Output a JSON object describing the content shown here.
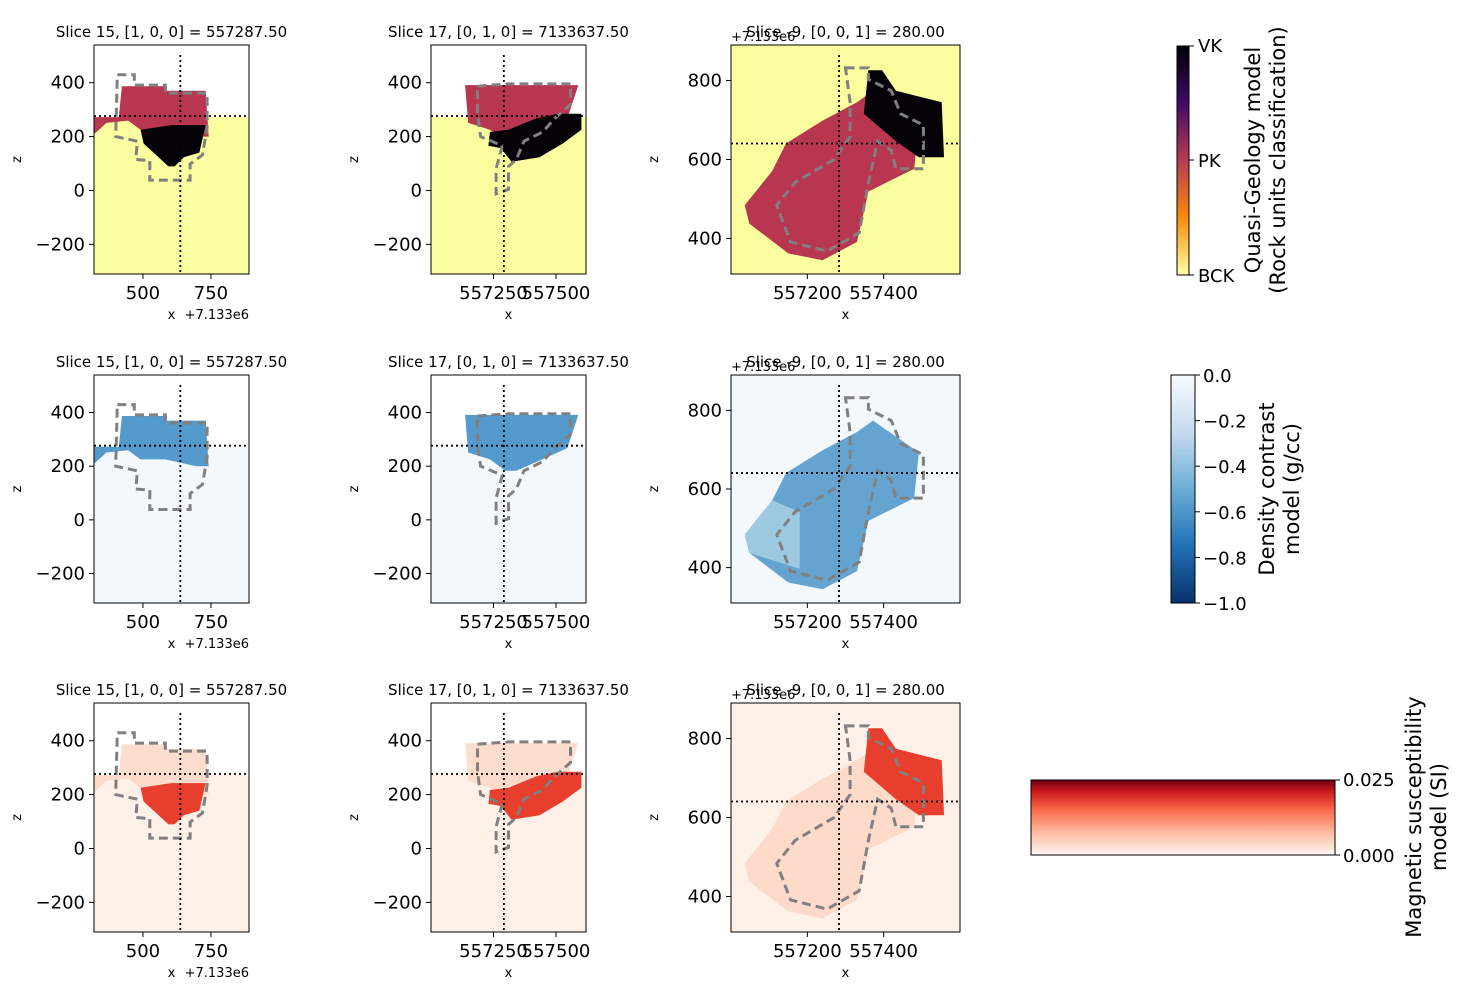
{
  "chart_data": [
    {
      "type": "heatmap",
      "model": "geology",
      "title": "Slice 15, [1, 0, 0] = 557287.50",
      "xlabel": "x",
      "ylabel": "z",
      "offset_label": "+7.133e6",
      "xticks": [
        500,
        750
      ],
      "xtick_labels": [
        "500",
        "750"
      ],
      "xlim": [
        320,
        890
      ],
      "yticks": [
        -200,
        0,
        200,
        400
      ],
      "ytick_labels": [
        "−200",
        "0",
        "200",
        "400"
      ],
      "ylim": [
        -310,
        540
      ]
    },
    {
      "type": "heatmap",
      "model": "geology",
      "title": "Slice 17, [0, 1, 0] = 7133637.50",
      "xlabel": "x",
      "ylabel": "z",
      "offset_label": "",
      "xticks": [
        557250,
        557500
      ],
      "xtick_labels": [
        "557250",
        "557500"
      ],
      "xlim": [
        557000,
        557620
      ],
      "yticks": [
        -200,
        0,
        200,
        400
      ],
      "ytick_labels": [
        "−200",
        "0",
        "200",
        "400"
      ],
      "ylim": [
        -310,
        540
      ]
    },
    {
      "type": "heatmap",
      "model": "geology",
      "title": "Slice -9, [0, 0, 1] = 280.00",
      "xlabel": "x",
      "ylabel": "z",
      "offset_label": "+7.133e6",
      "xticks": [
        557200,
        557400
      ],
      "xtick_labels": [
        "557200",
        "557400"
      ],
      "xlim": [
        557000,
        557600
      ],
      "yticks": [
        400,
        600,
        800
      ],
      "ytick_labels": [
        "400",
        "600",
        "800"
      ],
      "ylim": [
        310,
        890
      ]
    },
    {
      "type": "heatmap",
      "model": "density",
      "title": "Slice 15, [1, 0, 0] = 557287.50",
      "xlabel": "x",
      "ylabel": "z",
      "offset_label": "+7.133e6",
      "xticks": [
        500,
        750
      ],
      "xtick_labels": [
        "500",
        "750"
      ],
      "xlim": [
        320,
        890
      ],
      "yticks": [
        -200,
        0,
        200,
        400
      ],
      "ytick_labels": [
        "−200",
        "0",
        "200",
        "400"
      ],
      "ylim": [
        -310,
        540
      ]
    },
    {
      "type": "heatmap",
      "model": "density",
      "title": "Slice 17, [0, 1, 0] = 7133637.50",
      "xlabel": "x",
      "ylabel": "z",
      "offset_label": "",
      "xticks": [
        557250,
        557500
      ],
      "xtick_labels": [
        "557250",
        "557500"
      ],
      "xlim": [
        557000,
        557620
      ],
      "yticks": [
        -200,
        0,
        200,
        400
      ],
      "ytick_labels": [
        "−200",
        "0",
        "200",
        "400"
      ],
      "ylim": [
        -310,
        540
      ]
    },
    {
      "type": "heatmap",
      "model": "density",
      "title": "Slice -9, [0, 0, 1] = 280.00",
      "xlabel": "x",
      "ylabel": "z",
      "offset_label": "+7.133e6",
      "xticks": [
        557200,
        557400
      ],
      "xtick_labels": [
        "557200",
        "557400"
      ],
      "xlim": [
        557000,
        557600
      ],
      "yticks": [
        400,
        600,
        800
      ],
      "ytick_labels": [
        "400",
        "600",
        "800"
      ],
      "ylim": [
        310,
        890
      ]
    },
    {
      "type": "heatmap",
      "model": "magnetic",
      "title": "Slice 15, [1, 0, 0] = 557287.50",
      "xlabel": "x",
      "ylabel": "z",
      "offset_label": "+7.133e6",
      "xticks": [
        500,
        750
      ],
      "xtick_labels": [
        "500",
        "750"
      ],
      "xlim": [
        320,
        890
      ],
      "yticks": [
        -200,
        0,
        200,
        400
      ],
      "ytick_labels": [
        "−200",
        "0",
        "200",
        "400"
      ],
      "ylim": [
        -310,
        540
      ]
    },
    {
      "type": "heatmap",
      "model": "magnetic",
      "title": "Slice 17, [0, 1, 0] = 7133637.50",
      "xlabel": "x",
      "ylabel": "z",
      "offset_label": "",
      "xticks": [
        557250,
        557500
      ],
      "xtick_labels": [
        "557250",
        "557500"
      ],
      "xlim": [
        557000,
        557620
      ],
      "yticks": [
        -200,
        0,
        200,
        400
      ],
      "ytick_labels": [
        "−200",
        "0",
        "200",
        "400"
      ],
      "ylim": [
        -310,
        540
      ]
    },
    {
      "type": "heatmap",
      "model": "magnetic",
      "title": "Slice -9, [0, 0, 1] = 280.00",
      "xlabel": "x",
      "ylabel": "z",
      "offset_label": "+7.133e6",
      "xticks": [
        557200,
        557400
      ],
      "xtick_labels": [
        "557200",
        "557400"
      ],
      "xlim": [
        557000,
        557600
      ],
      "yticks": [
        400,
        600,
        800
      ],
      "ytick_labels": [
        "400",
        "600",
        "800"
      ],
      "ylim": [
        310,
        890
      ]
    }
  ],
  "colorbars": {
    "geology": {
      "label_line1": "Quasi-Geology model",
      "label_line2": "(Rock units classification)",
      "tick_labels": [
        "VK",
        "PK",
        "BCK"
      ],
      "colors": [
        "#000004",
        "#420a68",
        "#b63b52",
        "#f98c0a",
        "#fcffa4"
      ]
    },
    "density": {
      "label_line1": "Density contrast",
      "label_line2": "model (g/cc)",
      "tick_labels": [
        "0.0",
        "−0.2",
        "−0.4",
        "−0.6",
        "−0.8",
        "−1.0"
      ],
      "vmin": -1.0,
      "vmax": 0.0
    },
    "magnetic": {
      "label_line1": "Magnetic susceptibility",
      "label_line2": "model (SI)",
      "tick_labels": [
        "0.025",
        "0.000"
      ],
      "vmin": 0.0,
      "vmax": 0.025
    }
  },
  "colors": {
    "background_rock": "#fbfe9e",
    "pk_unit": "#b8364f",
    "vk_unit": "#050308",
    "density_low": "#f3f8fd",
    "density_mid": "#4b95c9",
    "mag_low": "#fff0e8",
    "mag_high": "#e73e2d",
    "contour": "#808080",
    "crosshair": "#000000"
  }
}
